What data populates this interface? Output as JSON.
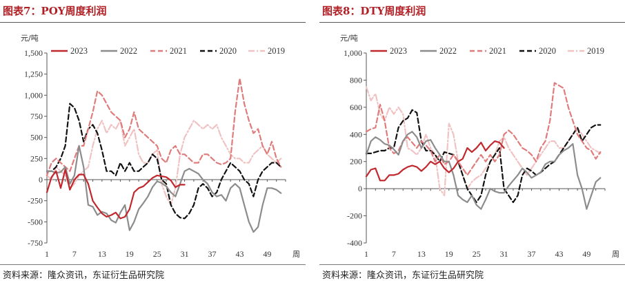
{
  "left": {
    "title": "图表7：POY周度利润",
    "source": "资料来源：隆众资讯，东证衍生品研究院",
    "chart_data": {
      "type": "line",
      "title": "POY周度利润",
      "ylabel": "元/吨",
      "xlabel": "周",
      "ylim": [
        -750,
        1500
      ],
      "xlim": [
        1,
        53
      ],
      "yticks": [
        -750,
        -500,
        -250,
        0,
        250,
        500,
        750,
        1000,
        1250,
        1500
      ],
      "ytick_labels": [
        "-750",
        "-500",
        "-250",
        "0",
        "250",
        "500",
        "750",
        "1,000",
        "1,250",
        "1,500"
      ],
      "xticks": [
        1,
        7,
        13,
        19,
        25,
        31,
        37,
        43,
        49
      ],
      "legend_position": "top",
      "series": [
        {
          "name": "2023",
          "color": "#c0282d",
          "dash": "solid",
          "x": [
            1,
            2,
            3,
            4,
            5,
            6,
            7,
            8,
            9,
            10,
            11,
            12,
            13,
            14,
            15,
            16,
            17,
            18,
            19,
            20,
            21,
            22,
            23,
            24,
            25,
            26,
            27,
            28,
            29,
            30,
            31
          ],
          "y": [
            -150,
            30,
            100,
            -100,
            120,
            -120,
            0,
            60,
            60,
            -50,
            -250,
            -330,
            -400,
            -440,
            -420,
            -390,
            -460,
            -440,
            -350,
            -150,
            -100,
            -80,
            -30,
            20,
            50,
            40,
            30,
            -10,
            -90,
            -60,
            -60
          ]
        },
        {
          "name": "2022",
          "color": "#8c8c8c",
          "dash": "solid",
          "x": [
            1,
            2,
            3,
            4,
            5,
            6,
            7,
            8,
            9,
            10,
            11,
            12,
            13,
            14,
            15,
            16,
            17,
            18,
            19,
            20,
            21,
            22,
            23,
            24,
            25,
            26,
            27,
            28,
            29,
            30,
            31,
            32,
            33,
            34,
            35,
            36,
            37,
            38,
            39,
            40,
            41,
            42,
            43,
            44,
            45,
            46,
            47,
            48,
            49,
            50,
            51,
            52
          ],
          "y": [
            100,
            100,
            80,
            90,
            150,
            -50,
            50,
            400,
            150,
            -300,
            -320,
            -420,
            -380,
            -400,
            -480,
            -510,
            -390,
            -300,
            -600,
            -500,
            -350,
            -280,
            -200,
            -90,
            -20,
            -40,
            -80,
            -150,
            -200,
            -50,
            100,
            130,
            100,
            70,
            0,
            -50,
            -150,
            -200,
            -180,
            -250,
            -100,
            -50,
            -100,
            -300,
            -500,
            -620,
            -560,
            -300,
            -100,
            -100,
            -120,
            -160
          ]
        },
        {
          "name": "2021",
          "color": "#e07b7b",
          "dash": "dash",
          "x": [
            1,
            2,
            3,
            4,
            5,
            6,
            7,
            8,
            9,
            10,
            11,
            12,
            13,
            14,
            15,
            16,
            17,
            18,
            19,
            20,
            21,
            22,
            23,
            24,
            25,
            26,
            27,
            28,
            29,
            30,
            31,
            32,
            33,
            34,
            35,
            36,
            37,
            38,
            39,
            40,
            41,
            42,
            43,
            44,
            45,
            46,
            47,
            48,
            49,
            50,
            51,
            52
          ],
          "y": [
            50,
            200,
            250,
            200,
            150,
            100,
            250,
            400,
            400,
            600,
            800,
            1050,
            1000,
            900,
            800,
            750,
            700,
            500,
            600,
            800,
            600,
            550,
            500,
            450,
            400,
            250,
            200,
            350,
            400,
            300,
            300,
            250,
            200,
            200,
            300,
            300,
            250,
            200,
            180,
            200,
            250,
            800,
            1200,
            900,
            700,
            550,
            600,
            400,
            300,
            450,
            250,
            150
          ]
        },
        {
          "name": "2020",
          "color": "#111111",
          "dash": "dash",
          "x": [
            1,
            2,
            3,
            4,
            5,
            6,
            7,
            8,
            9,
            10,
            11,
            12,
            13,
            14,
            15,
            16,
            17,
            18,
            19,
            20,
            21,
            22,
            23,
            24,
            25,
            26,
            27,
            28,
            29,
            30,
            31,
            32,
            33,
            34,
            35,
            36,
            37,
            38,
            39,
            40,
            41,
            42,
            43,
            44,
            45,
            46,
            47,
            48,
            49,
            50,
            51,
            52
          ],
          "y": [
            100,
            100,
            150,
            250,
            400,
            900,
            850,
            700,
            450,
            600,
            650,
            550,
            350,
            100,
            100,
            50,
            200,
            100,
            200,
            100,
            100,
            150,
            200,
            300,
            250,
            0,
            -50,
            -300,
            -400,
            -450,
            -460,
            -400,
            -300,
            -100,
            -50,
            -100,
            -200,
            -150,
            0,
            100,
            200,
            150,
            100,
            0,
            -50,
            -200,
            0,
            100,
            150,
            200,
            200,
            150
          ]
        },
        {
          "name": "2019",
          "color": "#f0c2c2",
          "dash": "dashdot",
          "x": [
            1,
            2,
            3,
            4,
            5,
            6,
            7,
            8,
            9,
            10,
            11,
            12,
            13,
            14,
            15,
            16,
            17,
            18,
            19,
            20,
            21,
            22,
            23,
            24,
            25,
            26,
            27,
            28,
            29,
            30,
            31,
            32,
            33,
            34,
            35,
            36,
            37,
            38,
            39,
            40,
            41,
            42,
            43,
            44,
            45,
            46,
            47,
            48,
            49,
            50,
            51,
            52
          ],
          "y": [
            50,
            0,
            150,
            100,
            50,
            -100,
            -50,
            50,
            100,
            150,
            400,
            600,
            700,
            550,
            650,
            600,
            700,
            400,
            500,
            600,
            300,
            200,
            200,
            300,
            350,
            -50,
            -200,
            -300,
            -100,
            300,
            500,
            600,
            700,
            650,
            600,
            650,
            600,
            650,
            500,
            400,
            300,
            250,
            250,
            200,
            200,
            300,
            350,
            400,
            300,
            250,
            200,
            250
          ]
        }
      ]
    }
  },
  "right": {
    "title": "图表8：DTY周度利润",
    "source": "资料来源：隆众资讯，东证衍生品研究院",
    "chart_data": {
      "type": "line",
      "title": "DTY周度利润",
      "ylabel": "元/吨",
      "xlabel": "周",
      "ylim": [
        -400,
        1000
      ],
      "xlim": [
        1,
        53
      ],
      "yticks": [
        -400,
        -200,
        0,
        200,
        400,
        600,
        800,
        1000
      ],
      "ytick_labels": [
        "-400",
        "-200",
        "0",
        "200",
        "400",
        "600",
        "800",
        "1,000"
      ],
      "xticks": [
        1,
        7,
        13,
        19,
        25,
        31,
        37,
        43,
        49
      ],
      "legend_position": "top",
      "series": [
        {
          "name": "2023",
          "color": "#c0282d",
          "dash": "solid",
          "x": [
            1,
            2,
            3,
            4,
            5,
            6,
            7,
            8,
            9,
            10,
            11,
            12,
            13,
            14,
            15,
            16,
            17,
            18,
            19,
            20,
            21,
            22,
            23,
            24,
            25,
            26,
            27,
            28,
            29,
            30,
            31
          ],
          "y": [
            90,
            140,
            150,
            60,
            60,
            100,
            100,
            110,
            140,
            160,
            170,
            160,
            130,
            160,
            200,
            180,
            200,
            150,
            120,
            150,
            200,
            220,
            300,
            270,
            300,
            340,
            280,
            320,
            350,
            340,
            300
          ]
        },
        {
          "name": "2022",
          "color": "#8c8c8c",
          "dash": "solid",
          "x": [
            1,
            2,
            3,
            4,
            5,
            6,
            7,
            8,
            9,
            10,
            11,
            12,
            13,
            14,
            15,
            16,
            17,
            18,
            19,
            20,
            21,
            22,
            23,
            24,
            25,
            26,
            27,
            28,
            29,
            30,
            31,
            32,
            33,
            34,
            35,
            36,
            37,
            38,
            39,
            40,
            41,
            42,
            43,
            44,
            45,
            46,
            47,
            48,
            49,
            50,
            51,
            52
          ],
          "y": [
            250,
            350,
            380,
            360,
            330,
            320,
            290,
            250,
            350,
            400,
            420,
            380,
            300,
            350,
            360,
            300,
            250,
            200,
            200,
            100,
            -50,
            -80,
            -100,
            -50,
            -120,
            -150,
            -80,
            0,
            -20,
            -30,
            -30,
            20,
            60,
            100,
            150,
            120,
            80,
            100,
            120,
            180,
            200,
            200,
            250,
            280,
            300,
            330,
            100,
            0,
            -150,
            -50,
            50,
            80
          ]
        },
        {
          "name": "2021",
          "color": "#e07b7b",
          "dash": "dash",
          "x": [
            1,
            2,
            3,
            4,
            5,
            6,
            7,
            8,
            9,
            10,
            11,
            12,
            13,
            14,
            15,
            16,
            17,
            18,
            19,
            20,
            21,
            22,
            23,
            24,
            25,
            26,
            27,
            28,
            29,
            30,
            31,
            32,
            33,
            34,
            35,
            36,
            37,
            38,
            39,
            40,
            41,
            42,
            43,
            44,
            45,
            46,
            47,
            48,
            49,
            50,
            51,
            52
          ],
          "y": [
            420,
            440,
            450,
            620,
            500,
            300,
            260,
            280,
            350,
            380,
            340,
            300,
            350,
            320,
            280,
            200,
            250,
            180,
            200,
            250,
            200,
            150,
            100,
            150,
            200,
            250,
            200,
            250,
            200,
            250,
            400,
            430,
            400,
            350,
            300,
            280,
            250,
            200,
            300,
            350,
            500,
            780,
            760,
            740,
            600,
            500,
            400,
            350,
            300,
            280,
            220,
            270
          ]
        },
        {
          "name": "2020",
          "color": "#111111",
          "dash": "dash",
          "x": [
            1,
            2,
            3,
            4,
            5,
            6,
            7,
            8,
            9,
            10,
            11,
            12,
            13,
            14,
            15,
            16,
            17,
            18,
            19,
            20,
            21,
            22,
            23,
            24,
            25,
            26,
            27,
            28,
            29,
            30,
            31,
            32,
            33,
            34,
            35,
            36,
            37,
            38,
            39,
            40,
            41,
            42,
            43,
            44,
            45,
            46,
            47,
            48,
            49,
            50,
            51,
            52
          ],
          "y": [
            260,
            260,
            270,
            280,
            280,
            300,
            300,
            450,
            500,
            520,
            580,
            560,
            350,
            280,
            280,
            250,
            200,
            270,
            260,
            250,
            200,
            100,
            0,
            -50,
            -100,
            -50,
            100,
            200,
            250,
            300,
            0,
            -50,
            -100,
            -50,
            100,
            150,
            130,
            100,
            120,
            150,
            180,
            200,
            250,
            300,
            350,
            400,
            450,
            350,
            400,
            450,
            470,
            470
          ]
        },
        {
          "name": "2019",
          "color": "#f0c2c2",
          "dash": "dashdot",
          "x": [
            1,
            2,
            3,
            4,
            5,
            6,
            7,
            8,
            9,
            10,
            11,
            12,
            13,
            14,
            15,
            16,
            17,
            18,
            19,
            20,
            21,
            22,
            23,
            24,
            25,
            26,
            27,
            28,
            29,
            30,
            31,
            32,
            33,
            34,
            35,
            36,
            37,
            38,
            39,
            40,
            41,
            42,
            43,
            44,
            45,
            46,
            47,
            48,
            49,
            50,
            51,
            52
          ],
          "y": [
            750,
            650,
            700,
            550,
            500,
            600,
            550,
            600,
            550,
            300,
            280,
            250,
            300,
            400,
            300,
            250,
            0,
            -50,
            480,
            400,
            200,
            100,
            0,
            50,
            80,
            100,
            150,
            200,
            250,
            350,
            380,
            300,
            250,
            200,
            150,
            100,
            150,
            200,
            250,
            300,
            350,
            350,
            300,
            300,
            350,
            400,
            450,
            400,
            350,
            300,
            280,
            260
          ]
        }
      ]
    }
  }
}
